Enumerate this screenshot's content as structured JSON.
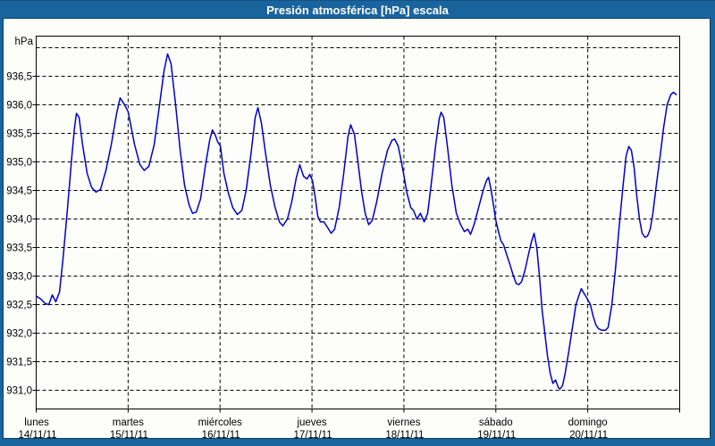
{
  "window": {
    "title": "Presión atmosférica [hPa] escala"
  },
  "colors": {
    "frame_blue": "#1A649E",
    "frame_border_dark": "#0A4066",
    "title_text": "#FFFFFF",
    "plot_background": "#FDFDFA",
    "grid_and_text": "#000000",
    "line_blue": "#0000C8"
  },
  "chart_data": {
    "type": "line",
    "title": "Presión atmosférica [hPa] escala",
    "grid": "dashed",
    "legend": "none",
    "y_axis": {
      "unit_label": "hPa",
      "decimal_separator": ",",
      "ticks": [
        {
          "label": "936,5",
          "value": 936.5
        },
        {
          "label": "936,0",
          "value": 936.0
        },
        {
          "label": "935,5",
          "value": 935.5
        },
        {
          "label": "935,0",
          "value": 935.0
        },
        {
          "label": "934,5",
          "value": 934.5
        },
        {
          "label": "934,0",
          "value": 934.0
        },
        {
          "label": "933,5",
          "value": 933.5
        },
        {
          "label": "933,0",
          "value": 933.0
        },
        {
          "label": "932,5",
          "value": 932.5
        },
        {
          "label": "932,0",
          "value": 932.0
        },
        {
          "label": "931,5",
          "value": 931.5
        },
        {
          "label": "931,0",
          "value": 931.0
        }
      ],
      "gridline_values": [
        937.0,
        936.5,
        936.0,
        935.5,
        935.0,
        934.5,
        934.0,
        933.5,
        933.0,
        932.5,
        932.0,
        931.5,
        931.0
      ],
      "range_hpa": [
        930.67,
        937.2
      ]
    },
    "x_axis": {
      "span_hours": 168,
      "days": [
        {
          "name": "lunes",
          "date": "14/11/11"
        },
        {
          "name": "martes",
          "date": "15/11/11"
        },
        {
          "name": "miércoles",
          "date": "16/11/11"
        },
        {
          "name": "jueves",
          "date": "17/11/11"
        },
        {
          "name": "viernes",
          "date": "18/11/11"
        },
        {
          "name": "sábado",
          "date": "19/11/11"
        },
        {
          "name": "domingo",
          "date": "20/11/11"
        }
      ]
    },
    "series": [
      {
        "name": "Presión atmosférica",
        "color": "#0000C8",
        "units": "hPa vs hours since lunes 00:00",
        "points": [
          [
            0,
            932.65
          ],
          [
            1.2,
            932.6
          ],
          [
            2.3,
            932.52
          ],
          [
            3.3,
            932.5
          ],
          [
            4.2,
            932.67
          ],
          [
            5.1,
            932.55
          ],
          [
            6.1,
            932.72
          ],
          [
            7,
            933.3
          ],
          [
            8.2,
            934.2
          ],
          [
            9.3,
            935.1
          ],
          [
            10,
            935.6
          ],
          [
            10.5,
            935.85
          ],
          [
            11.2,
            935.78
          ],
          [
            12.1,
            935.3
          ],
          [
            13.3,
            934.8
          ],
          [
            14.5,
            934.55
          ],
          [
            15.6,
            934.47
          ],
          [
            16.8,
            934.52
          ],
          [
            18.2,
            934.85
          ],
          [
            19.6,
            935.3
          ],
          [
            21,
            935.85
          ],
          [
            21.9,
            936.12
          ],
          [
            22.9,
            936.02
          ],
          [
            24,
            935.88
          ],
          [
            25.7,
            935.3
          ],
          [
            27.1,
            934.95
          ],
          [
            28.2,
            934.85
          ],
          [
            29.4,
            934.92
          ],
          [
            30.8,
            935.3
          ],
          [
            32.2,
            936
          ],
          [
            33.4,
            936.6
          ],
          [
            34.3,
            936.89
          ],
          [
            35.2,
            936.72
          ],
          [
            36.4,
            936
          ],
          [
            37.6,
            935.2
          ],
          [
            38.7,
            934.6
          ],
          [
            39.9,
            934.25
          ],
          [
            40.8,
            934.1
          ],
          [
            41.8,
            934.12
          ],
          [
            42.9,
            934.35
          ],
          [
            44.1,
            934.9
          ],
          [
            45.3,
            935.38
          ],
          [
            46,
            935.56
          ],
          [
            46.7,
            935.48
          ],
          [
            47.4,
            935.35
          ],
          [
            48.1,
            935.28
          ],
          [
            49,
            934.8
          ],
          [
            50.2,
            934.45
          ],
          [
            51.3,
            934.2
          ],
          [
            52.5,
            934.08
          ],
          [
            53.7,
            934.15
          ],
          [
            54.8,
            934.5
          ],
          [
            56,
            935.1
          ],
          [
            57.2,
            935.78
          ],
          [
            57.9,
            935.95
          ],
          [
            58.8,
            935.68
          ],
          [
            60,
            935.1
          ],
          [
            61.1,
            934.6
          ],
          [
            62.3,
            934.22
          ],
          [
            63.5,
            933.95
          ],
          [
            64.4,
            933.88
          ],
          [
            65.6,
            934
          ],
          [
            66.7,
            934.3
          ],
          [
            67.9,
            934.72
          ],
          [
            68.8,
            934.95
          ],
          [
            69.8,
            934.75
          ],
          [
            70.7,
            934.7
          ],
          [
            71.4,
            934.78
          ],
          [
            72.1,
            934.68
          ],
          [
            72.8,
            934.4
          ],
          [
            73.5,
            934.05
          ],
          [
            74.2,
            933.95
          ],
          [
            75.1,
            933.95
          ],
          [
            76.1,
            933.85
          ],
          [
            77,
            933.75
          ],
          [
            77.9,
            933.82
          ],
          [
            79.1,
            934.2
          ],
          [
            80.3,
            934.8
          ],
          [
            81.4,
            935.45
          ],
          [
            82.1,
            935.65
          ],
          [
            83.1,
            935.48
          ],
          [
            84,
            935
          ],
          [
            84.9,
            934.5
          ],
          [
            85.9,
            934.1
          ],
          [
            86.8,
            933.9
          ],
          [
            87.7,
            933.97
          ],
          [
            88.9,
            934.3
          ],
          [
            90.3,
            934.8
          ],
          [
            91.7,
            935.2
          ],
          [
            92.9,
            935.38
          ],
          [
            93.6,
            935.4
          ],
          [
            94.5,
            935.28
          ],
          [
            95.2,
            935.05
          ],
          [
            95.9,
            934.8
          ],
          [
            96.8,
            934.45
          ],
          [
            97.8,
            934.2
          ],
          [
            98.5,
            934.15
          ],
          [
            99.4,
            934
          ],
          [
            100.3,
            934.1
          ],
          [
            101.3,
            933.95
          ],
          [
            102.2,
            934.1
          ],
          [
            103.1,
            934.6
          ],
          [
            104.3,
            935.3
          ],
          [
            105.2,
            935.75
          ],
          [
            105.7,
            935.87
          ],
          [
            106.4,
            935.78
          ],
          [
            107.3,
            935.3
          ],
          [
            108.5,
            934.6
          ],
          [
            109.7,
            934.1
          ],
          [
            110.8,
            933.9
          ],
          [
            111.8,
            933.78
          ],
          [
            112.7,
            933.82
          ],
          [
            113.4,
            933.73
          ],
          [
            114.3,
            933.9
          ],
          [
            115.5,
            934.2
          ],
          [
            116.7,
            934.5
          ],
          [
            117.6,
            934.68
          ],
          [
            118.1,
            934.73
          ],
          [
            118.8,
            934.5
          ],
          [
            119.5,
            934.2
          ],
          [
            119.9,
            934
          ],
          [
            120.6,
            933.8
          ],
          [
            121.3,
            933.62
          ],
          [
            122,
            933.55
          ],
          [
            122.7,
            933.4
          ],
          [
            123.7,
            933.2
          ],
          [
            124.6,
            933
          ],
          [
            125.3,
            932.87
          ],
          [
            126,
            932.85
          ],
          [
            126.7,
            932.9
          ],
          [
            127.6,
            933.1
          ],
          [
            128.6,
            933.4
          ],
          [
            129.3,
            933.6
          ],
          [
            130,
            933.75
          ],
          [
            130.7,
            933.5
          ],
          [
            131.4,
            933
          ],
          [
            132.1,
            932.4
          ],
          [
            132.8,
            932
          ],
          [
            133.5,
            931.6
          ],
          [
            134.2,
            931.3
          ],
          [
            134.9,
            931.12
          ],
          [
            135.6,
            931.18
          ],
          [
            136.3,
            931.05
          ],
          [
            136.7,
            931.02
          ],
          [
            137.4,
            931.08
          ],
          [
            138.1,
            931.3
          ],
          [
            139.1,
            931.7
          ],
          [
            140,
            932.1
          ],
          [
            140.9,
            932.5
          ],
          [
            141.9,
            932.7
          ],
          [
            142.3,
            932.78
          ],
          [
            143,
            932.7
          ],
          [
            143.7,
            932.62
          ],
          [
            144.7,
            932.5
          ],
          [
            145.4,
            932.3
          ],
          [
            146.1,
            932.15
          ],
          [
            146.8,
            932.08
          ],
          [
            147.7,
            932.05
          ],
          [
            148.6,
            932.05
          ],
          [
            149.3,
            932.1
          ],
          [
            150.3,
            932.5
          ],
          [
            151.2,
            933.1
          ],
          [
            152.1,
            933.8
          ],
          [
            153.1,
            934.5
          ],
          [
            154,
            935.1
          ],
          [
            154.7,
            935.27
          ],
          [
            155.4,
            935.2
          ],
          [
            156.1,
            934.9
          ],
          [
            156.8,
            934.4
          ],
          [
            157.5,
            934
          ],
          [
            158.2,
            933.75
          ],
          [
            158.9,
            933.68
          ],
          [
            159.6,
            933.7
          ],
          [
            160.3,
            933.82
          ],
          [
            161,
            934.1
          ],
          [
            161.9,
            934.6
          ],
          [
            162.9,
            935.1
          ],
          [
            163.8,
            935.6
          ],
          [
            164.7,
            936
          ],
          [
            165.7,
            936.18
          ],
          [
            166.4,
            936.22
          ],
          [
            167.1,
            936.18
          ]
        ]
      }
    ]
  }
}
